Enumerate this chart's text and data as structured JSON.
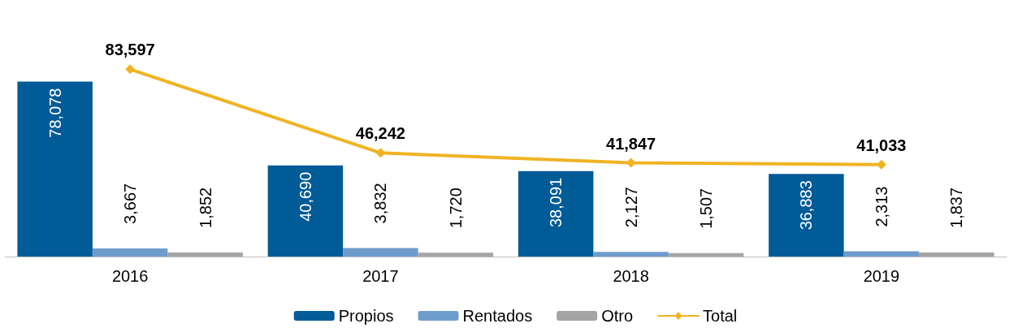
{
  "chart_data": {
    "type": "bar",
    "categories": [
      "2016",
      "2017",
      "2018",
      "2019"
    ],
    "series": [
      {
        "name": "Propios",
        "color": "#005b96",
        "values": [
          78078,
          40690,
          38091,
          36883
        ],
        "value_labels": [
          "78,078",
          "40,690",
          "38,091",
          "36,883"
        ]
      },
      {
        "name": "Rentados",
        "color": "#6f9dcb",
        "values": [
          3667,
          3832,
          2127,
          2313
        ],
        "value_labels": [
          "3,667",
          "3,832",
          "2,127",
          "2,313"
        ]
      },
      {
        "name": "Otro",
        "color": "#a5a5a5",
        "values": [
          1852,
          1720,
          1507,
          1837
        ],
        "value_labels": [
          "1,852",
          "1,720",
          "1,507",
          "1,837"
        ]
      },
      {
        "name": "Total",
        "type": "line",
        "color": "#f0b323",
        "values": [
          83597,
          46242,
          41847,
          41033
        ],
        "value_labels": [
          "83,597",
          "46,242",
          "41,847",
          "41,033"
        ]
      }
    ],
    "legend": "bottom",
    "marker": "diamond",
    "line_style": "solid"
  }
}
